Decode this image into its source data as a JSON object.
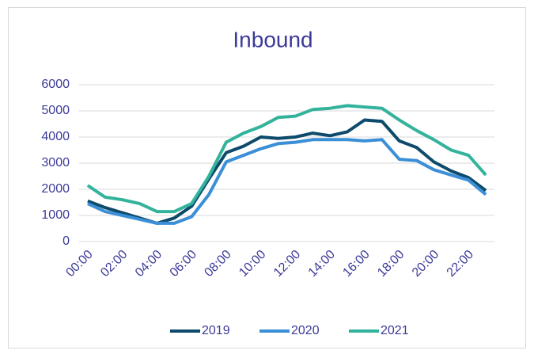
{
  "chart_data": {
    "type": "line",
    "title": "Inbound",
    "categories": [
      "00:00",
      null,
      "02:00",
      null,
      "04:00",
      null,
      "06:00",
      null,
      "08:00",
      null,
      "10:00",
      null,
      "12:00",
      null,
      "14:00",
      null,
      "16:00",
      null,
      "18:00",
      null,
      "20:00",
      null,
      "22:00",
      null
    ],
    "series": [
      {
        "name": "2019",
        "color": "#0d4a6b",
        "values": [
          1550,
          1300,
          1100,
          900,
          700,
          900,
          1350,
          2400,
          3400,
          3650,
          4000,
          3950,
          4000,
          4150,
          4050,
          4200,
          4650,
          4600,
          3850,
          3600,
          3050,
          2700,
          2450,
          1950
        ]
      },
      {
        "name": "2020",
        "color": "#3a8fd6",
        "values": [
          1450,
          1150,
          1000,
          850,
          700,
          700,
          950,
          1800,
          3050,
          3300,
          3550,
          3750,
          3800,
          3900,
          3900,
          3900,
          3850,
          3900,
          3150,
          3100,
          2750,
          2550,
          2350,
          1800
        ]
      },
      {
        "name": "2021",
        "color": "#33b39c",
        "values": [
          2150,
          1700,
          1600,
          1450,
          1150,
          1150,
          1450,
          2500,
          3800,
          4150,
          4400,
          4750,
          4800,
          5050,
          5100,
          5200,
          5150,
          5100,
          4650,
          4250,
          3900,
          3500,
          3300,
          2550
        ]
      }
    ],
    "ylim": [
      0,
      6000
    ],
    "yticks": [
      0,
      1000,
      2000,
      3000,
      4000,
      5000,
      6000
    ],
    "grid": true,
    "legend": "bottom"
  }
}
